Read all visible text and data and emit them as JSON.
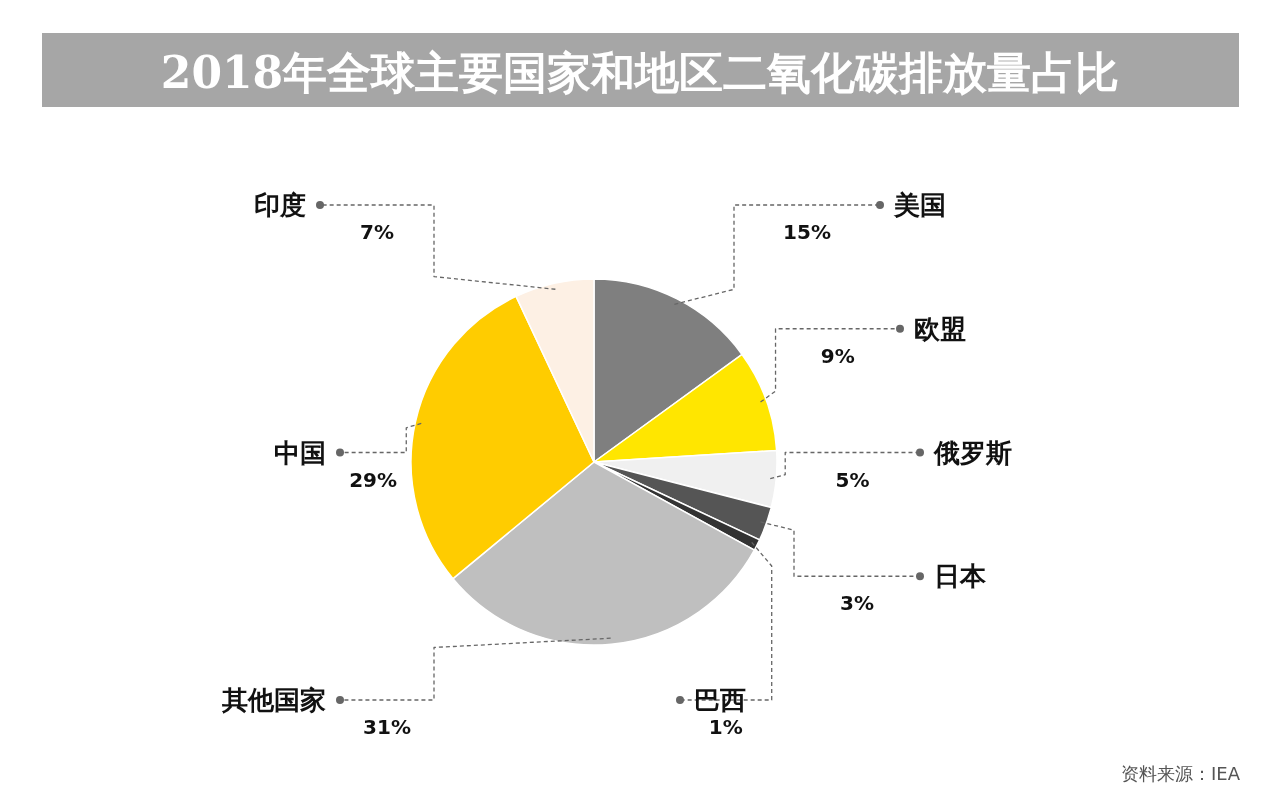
{
  "chart_data": {
    "type": "pie",
    "title": "2018年全球主要国家和地区二氧化碳排放量占比",
    "categories": [
      "美国",
      "欧盟",
      "俄罗斯",
      "日本",
      "巴西",
      "其他国家",
      "中国",
      "印度"
    ],
    "values": [
      15,
      9,
      5,
      3,
      1,
      31,
      29,
      7
    ],
    "value_labels": [
      "15%",
      "9%",
      "5%",
      "3%",
      "1%",
      "31%",
      "29%",
      "7%"
    ],
    "colors": [
      "#7f7f7f",
      "#ffe600",
      "#f0f0f0",
      "#555555",
      "#333333",
      "#bfbfbf",
      "#ffcc00",
      "#fdf0e4"
    ],
    "annotations": [
      "资料来源：IEA"
    ]
  }
}
